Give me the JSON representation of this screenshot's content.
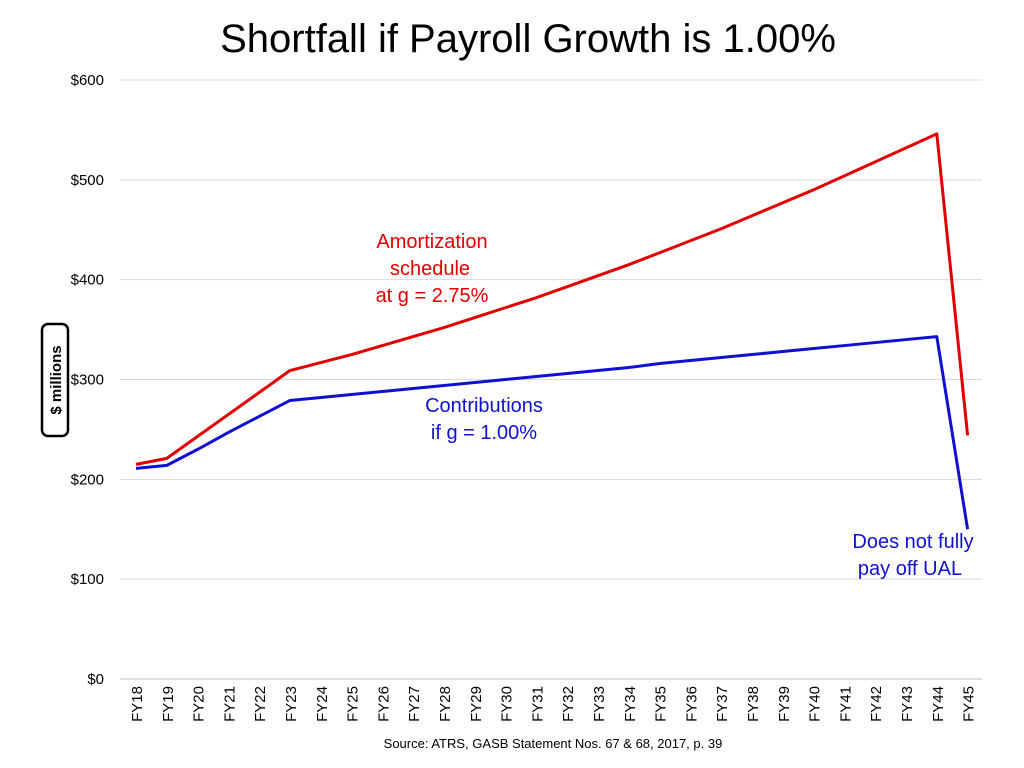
{
  "chart_data": {
    "type": "line",
    "title": "Shortfall if Payroll Growth is 1.00%",
    "ylabel": "$ millions",
    "xlabel": "",
    "ylim": [
      0,
      600
    ],
    "yticks": [
      0,
      100,
      200,
      300,
      400,
      500,
      600
    ],
    "ytick_labels": [
      "$0",
      "$100",
      "$200",
      "$300",
      "$400",
      "$500",
      "$600"
    ],
    "grid": true,
    "categories": [
      "FY18",
      "FY19",
      "FY20",
      "FY21",
      "FY22",
      "FY23",
      "FY24",
      "FY25",
      "FY26",
      "FY27",
      "FY28",
      "FY29",
      "FY30",
      "FY31",
      "FY32",
      "FY33",
      "FY34",
      "FY35",
      "FY36",
      "FY37",
      "FY38",
      "FY39",
      "FY40",
      "FY41",
      "FY42",
      "FY43",
      "FY44",
      "FY45"
    ],
    "series": [
      {
        "color": "#e00000",
        "values": [
          215,
          221,
          243,
          265,
          287,
          309,
          317,
          325,
          334,
          343,
          352,
          362,
          372,
          382,
          393,
          404,
          415,
          427,
          439,
          451,
          464,
          477,
          490,
          504,
          518,
          532,
          546,
          244
        ]
      },
      {
        "color": "#1010d0",
        "values": [
          211,
          214,
          230,
          247,
          263,
          279,
          282,
          285,
          288,
          291,
          294,
          297,
          300,
          303,
          306,
          309,
          312,
          316,
          319,
          322,
          325,
          328,
          331,
          334,
          337,
          340,
          343,
          150
        ]
      }
    ],
    "annotations": [
      {
        "lines": [
          "Amortization",
          "schedule",
          "at g = 2.75%"
        ],
        "color": "#e00000"
      },
      {
        "lines": [
          "Contributions",
          "if g = 1.00%"
        ],
        "color": "#1010d0"
      },
      {
        "lines": [
          "Does not fully",
          "pay off UAL"
        ],
        "color": "#1010d0"
      }
    ],
    "source": "Source:  ATRS, GASB Statement Nos. 67 & 68, 2017, p. 39"
  }
}
